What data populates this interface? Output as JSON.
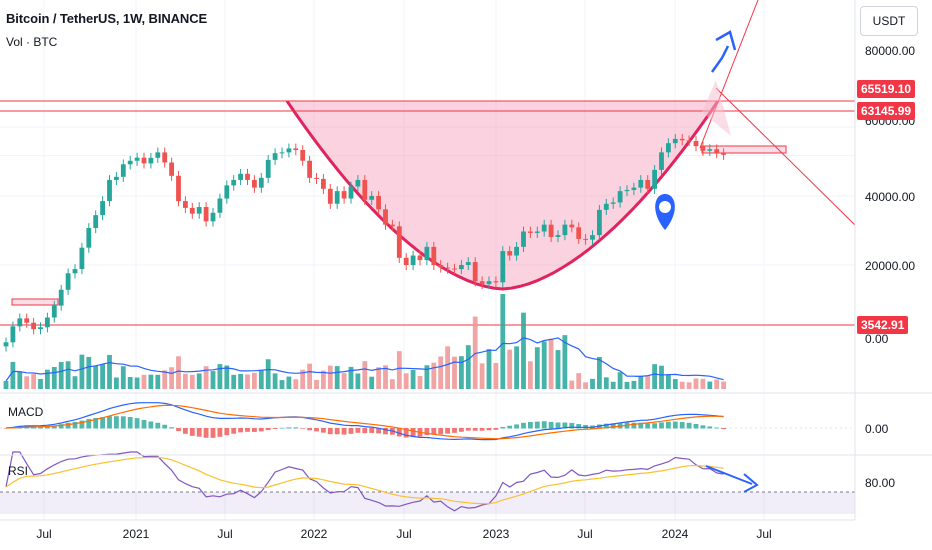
{
  "header": {
    "title": "Bitcoin / TetherUS, 1W, BINANCE",
    "volume_label": "Vol · BTC"
  },
  "currency_button": "USDT",
  "price_axis": [
    "80000.00",
    "40000.00",
    "20000.00"
  ],
  "price_axis_partial": "60000.00",
  "price_tags": [
    "65519.10",
    "63145.99",
    "3542.91"
  ],
  "volume_axis_label": "0.00",
  "macd": {
    "label": "MACD",
    "axis_label": "0.00"
  },
  "rsi": {
    "label": "RSI",
    "axis_label": "80.00"
  },
  "time_axis": [
    "Jul",
    "2021",
    "Jul",
    "2022",
    "Jul",
    "2023",
    "Jul",
    "2024",
    "Jul"
  ],
  "colors": {
    "up": "#26a69a",
    "down": "#ef5350",
    "accent": "#2962ff",
    "cup": "#e0245e",
    "level": "#f23645"
  },
  "chart_data": {
    "type": "candlestick",
    "symbol": "BTCUSDT",
    "interval": "1W",
    "weekly_close": [
      9200,
      10800,
      11700,
      11200,
      10500,
      10700,
      11800,
      13300,
      15600,
      18400,
      19200,
      23800,
      29000,
      33000,
      38000,
      47000,
      48500,
      55000,
      57000,
      58800,
      55500,
      58700,
      62000,
      56000,
      49000,
      38000,
      35500,
      33500,
      35800,
      31000,
      33800,
      39000,
      44500,
      47000,
      50000,
      47000,
      43500,
      48000,
      57500,
      61500,
      62000,
      64500,
      63500,
      57000,
      48000,
      47500,
      43000,
      37000,
      42000,
      39000,
      44000,
      47000,
      38500,
      40000,
      35000,
      30000,
      29500,
      21500,
      20000,
      22000,
      21000,
      24000,
      20000,
      19500,
      19300,
      19200,
      20000,
      20600,
      17000,
      16500,
      17000,
      16800,
      23000,
      22000,
      24000,
      28000,
      27600,
      28000,
      30000,
      26500,
      27000,
      30000,
      29200,
      26000,
      25800,
      27000,
      34800,
      37000,
      37500,
      42000,
      42500,
      43500,
      47000,
      43000,
      52000,
      62000,
      68000,
      71000,
      70000,
      69500,
      66000,
      63000,
      64000,
      61500,
      60500
    ]
  }
}
